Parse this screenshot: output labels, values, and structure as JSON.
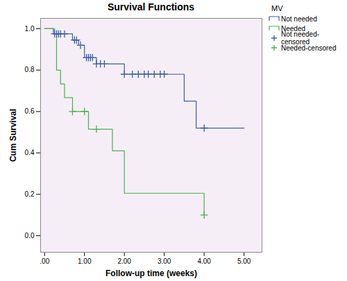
{
  "chart_data": {
    "type": "line",
    "title": "Survival Functions",
    "x_label": "Follow-up time (weeks)",
    "y_label": "Cum Survival",
    "legend_title": "MV",
    "legend": "right",
    "grid": false,
    "xlim": [
      -0.1,
      5.45
    ],
    "ylim": [
      -0.08,
      1.05
    ],
    "xticks": [
      {
        "value": 0,
        "label": ".00"
      },
      {
        "value": 1,
        "label": "1.00"
      },
      {
        "value": 2,
        "label": "2.00"
      },
      {
        "value": 3,
        "label": "3.00"
      },
      {
        "value": 4,
        "label": "4.00"
      },
      {
        "value": 5,
        "label": "5.00"
      }
    ],
    "yticks": [
      {
        "value": 0,
        "label": "0.0"
      },
      {
        "value": 0.2,
        "label": "0.2"
      },
      {
        "value": 0.4,
        "label": "0.4"
      },
      {
        "value": 0.6,
        "label": "0.6"
      },
      {
        "value": 0.8,
        "label": "0.8"
      },
      {
        "value": 1,
        "label": "1.0"
      }
    ],
    "series": [
      {
        "name": "Not needed",
        "type": "line",
        "line_style": "step",
        "color": "#3d5da8",
        "x": [
          0,
          0.22,
          0.7,
          0.85,
          1.0,
          1.3,
          2.0,
          3.5,
          3.8,
          5.0
        ],
        "values": [
          1.0,
          0.975,
          0.945,
          0.92,
          0.86,
          0.83,
          0.78,
          0.65,
          0.52,
          0.52
        ]
      },
      {
        "name": "Needed",
        "type": "line",
        "line_style": "step",
        "color": "#4caf50",
        "x": [
          0,
          0.25,
          0.3,
          0.4,
          0.5,
          0.7,
          1.1,
          1.7,
          2.0,
          4.0
        ],
        "values": [
          1.0,
          0.975,
          0.8,
          0.733,
          0.667,
          0.6,
          0.515,
          0.41,
          0.205,
          0.1
        ]
      },
      {
        "name": "Not needed-censored",
        "type": "scatter",
        "marker": "plus",
        "color": "#3d5da8",
        "x": [
          0.25,
          0.3,
          0.35,
          0.4,
          0.5,
          0.75,
          0.8,
          0.9,
          1.05,
          1.1,
          1.15,
          1.2,
          1.3,
          1.4,
          1.5,
          2.0,
          2.2,
          2.35,
          2.5,
          2.6,
          2.75,
          2.9,
          3.0,
          4.0
        ],
        "values": [
          0.975,
          0.975,
          0.975,
          0.975,
          0.975,
          0.945,
          0.945,
          0.92,
          0.86,
          0.86,
          0.86,
          0.86,
          0.83,
          0.83,
          0.83,
          0.78,
          0.78,
          0.78,
          0.78,
          0.78,
          0.78,
          0.78,
          0.78,
          0.52
        ]
      },
      {
        "name": "Needed-censored",
        "type": "scatter",
        "marker": "plus",
        "color": "#4caf50",
        "x": [
          0.7,
          1.0,
          1.3,
          4.0
        ],
        "values": [
          0.6,
          0.6,
          0.515,
          0.1
        ]
      }
    ]
  }
}
